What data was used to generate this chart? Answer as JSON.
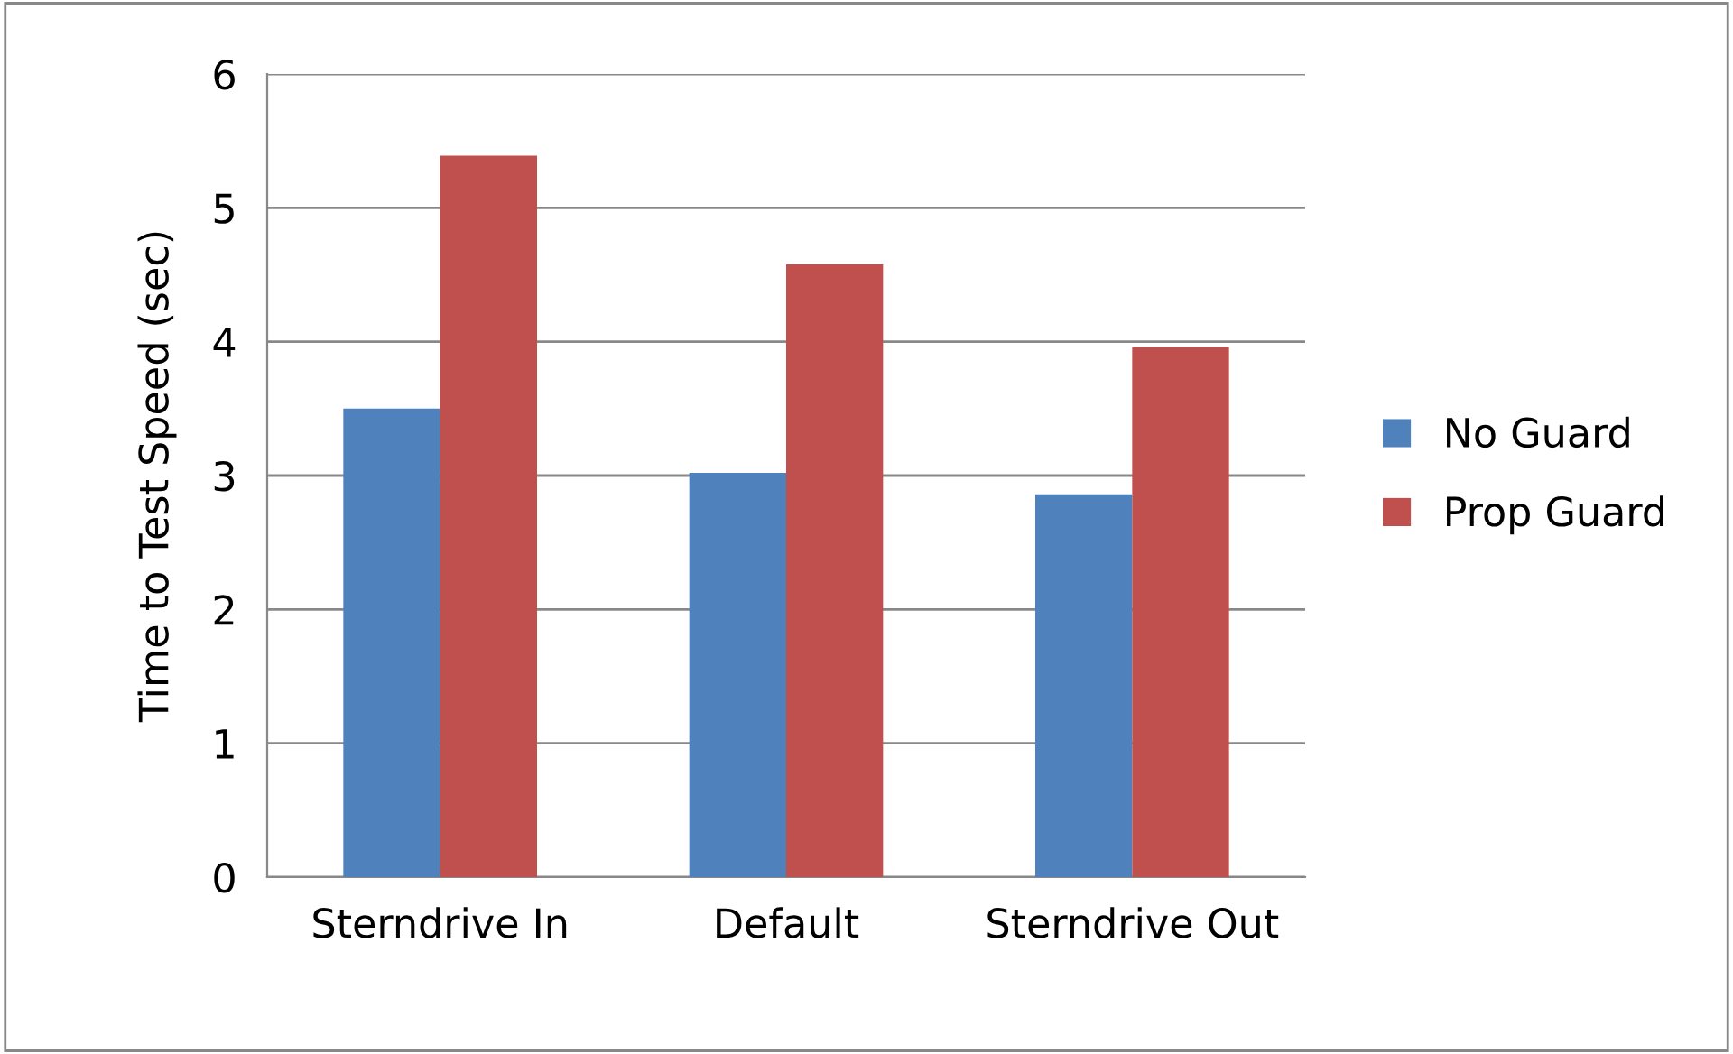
{
  "chart_data": {
    "type": "bar",
    "ylabel": "Time to Test Speed (sec)",
    "categories": [
      "Sterndrive In",
      "Default",
      "Sterndrive Out"
    ],
    "series": [
      {
        "name": "No Guard",
        "color": "#4f81bd",
        "values": [
          3.5,
          3.02,
          2.86
        ]
      },
      {
        "name": "Prop Guard",
        "color": "#c0504d",
        "values": [
          5.39,
          4.58,
          3.96
        ]
      }
    ],
    "ylim": [
      0,
      6
    ],
    "yticks": [
      0,
      1,
      2,
      3,
      4,
      5,
      6
    ],
    "grid": "y",
    "legend": "right"
  }
}
